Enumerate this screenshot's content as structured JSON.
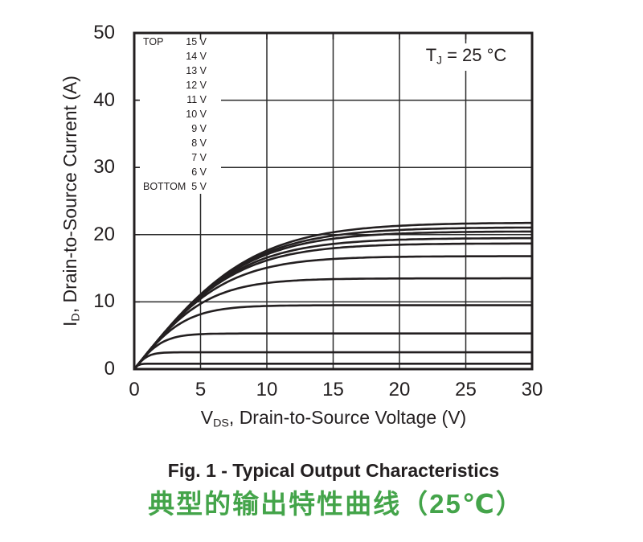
{
  "colors": {
    "ink": "#231f20",
    "grid": "#2a2a2a",
    "accent_green": "#44a44a",
    "background": "#ffffff"
  },
  "chart_data": {
    "type": "line",
    "title": "Typical Output Characteristics",
    "x_axis": {
      "label_pre": "V",
      "label_sub": "DS",
      "label_post": ", Drain-to-Source Voltage (V)",
      "ticks": [
        0,
        5,
        10,
        15,
        20,
        25,
        30
      ],
      "range": [
        0,
        30
      ]
    },
    "y_axis": {
      "label_pre": "I",
      "label_sub": "D",
      "label_post": ", Drain-to-Source Current (A)",
      "ticks": [
        0,
        10,
        20,
        30,
        40,
        50
      ],
      "range": [
        0,
        50
      ]
    },
    "grid": true,
    "annotation": {
      "pre": "T",
      "sub": "J",
      "post": " = 25 °C"
    },
    "legend": {
      "position": "top-left",
      "rows": [
        {
          "prefix": "TOP",
          "label": "15 V"
        },
        {
          "prefix": "",
          "label": "14 V"
        },
        {
          "prefix": "",
          "label": "13 V"
        },
        {
          "prefix": "",
          "label": "12 V"
        },
        {
          "prefix": "",
          "label": "11 V"
        },
        {
          "prefix": "",
          "label": "10 V"
        },
        {
          "prefix": "",
          "label": "9 V"
        },
        {
          "prefix": "",
          "label": "8 V"
        },
        {
          "prefix": "",
          "label": "7 V"
        },
        {
          "prefix": "",
          "label": "6 V"
        },
        {
          "prefix": "BOTTOM",
          "label": "5 V"
        }
      ]
    },
    "series": [
      {
        "name": "VGS = 15 V",
        "vgs_V": 15,
        "saturation_current_A": 21.8
      },
      {
        "name": "VGS = 14 V",
        "vgs_V": 14,
        "saturation_current_A": 21.1
      },
      {
        "name": "VGS = 13 V",
        "vgs_V": 13,
        "saturation_current_A": 20.5
      },
      {
        "name": "VGS = 12 V",
        "vgs_V": 12,
        "saturation_current_A": 19.5
      },
      {
        "name": "VGS = 11 V",
        "vgs_V": 11,
        "saturation_current_A": 18.7
      },
      {
        "name": "VGS = 10 V",
        "vgs_V": 10,
        "saturation_current_A": 16.8
      },
      {
        "name": "VGS = 9 V",
        "vgs_V": 9,
        "saturation_current_A": 13.5
      },
      {
        "name": "VGS = 8 V",
        "vgs_V": 8,
        "saturation_current_A": 9.5
      },
      {
        "name": "VGS = 7 V",
        "vgs_V": 7,
        "saturation_current_A": 5.3
      },
      {
        "name": "VGS = 6 V",
        "vgs_V": 6,
        "saturation_current_A": 2.5
      },
      {
        "name": "VGS = 5 V",
        "vgs_V": 5,
        "saturation_current_A": 0.8
      }
    ],
    "curve_model": {
      "initial_slope_A_per_V": 2.45,
      "formula": "I(VDS) = Isat * tanh(slope * VDS / Isat)"
    }
  },
  "captions": {
    "english": "Fig. 1 - Typical Output Characteristics",
    "chinese": "典型的输出特性曲线（25℃）"
  }
}
